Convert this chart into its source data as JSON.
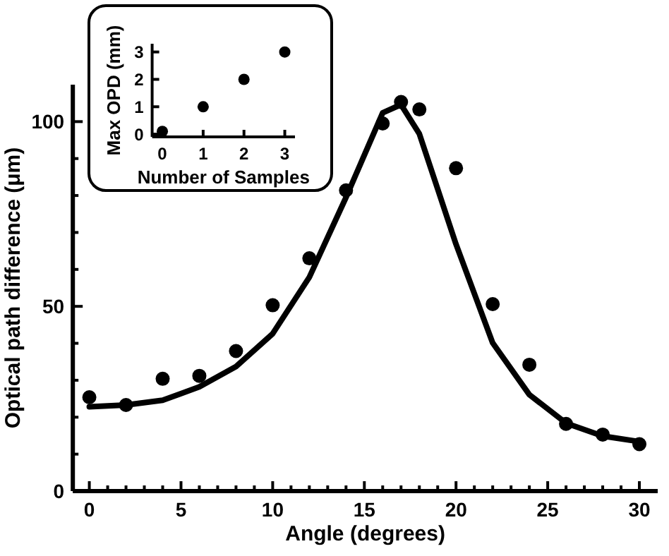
{
  "chart_data": [
    {
      "type": "scatter",
      "xlabel": "Angle (degrees)",
      "ylabel": "Optical path difference (μm)",
      "xlim": [
        -0.9,
        31
      ],
      "ylim": [
        0,
        110
      ],
      "xticks": [
        0,
        {
          "value": 1,
          "label": null
        },
        {
          "value": 2,
          "label": null
        },
        {
          "value": 3,
          "label": null
        },
        {
          "value": 4,
          "label": null
        },
        5,
        {
          "value": 6,
          "label": null
        },
        {
          "value": 7,
          "label": null
        },
        {
          "value": 8,
          "label": null
        },
        {
          "value": 9,
          "label": null
        },
        10,
        {
          "value": 11,
          "label": null
        },
        {
          "value": 12,
          "label": null
        },
        {
          "value": 13,
          "label": null
        },
        {
          "value": 14,
          "label": null
        },
        15,
        {
          "value": 16,
          "label": null
        },
        {
          "value": 17,
          "label": null
        },
        {
          "value": 18,
          "label": null
        },
        {
          "value": 19,
          "label": null
        },
        20,
        {
          "value": 21,
          "label": null
        },
        {
          "value": 22,
          "label": null
        },
        {
          "value": 23,
          "label": null
        },
        {
          "value": 24,
          "label": null
        },
        25,
        {
          "value": 26,
          "label": null
        },
        {
          "value": 27,
          "label": null
        },
        {
          "value": 28,
          "label": null
        },
        {
          "value": 29,
          "label": null
        },
        30
      ],
      "yticks": [
        0,
        {
          "value": 10,
          "label": null
        },
        {
          "value": 20,
          "label": null
        },
        {
          "value": 30,
          "label": null
        },
        {
          "value": 40,
          "label": null
        },
        50,
        {
          "value": 60,
          "label": null
        },
        {
          "value": 70,
          "label": null
        },
        {
          "value": 80,
          "label": null
        },
        {
          "value": 90,
          "label": null
        },
        100
      ],
      "grid": false,
      "series": [
        {
          "color": "#000000",
          "marker": "circle",
          "x": [
            0,
            2,
            4,
            6,
            8,
            10,
            12,
            14,
            16,
            17,
            18,
            20,
            22,
            24,
            26,
            28,
            30
          ],
          "values": [
            25.4,
            23.3,
            30.4,
            31.2,
            37.9,
            50.3,
            63,
            81.4,
            99.5,
            105.3,
            103.3,
            87.4,
            50.6,
            34.2,
            18.2,
            15.3,
            12.7
          ]
        },
        {
          "type": "line",
          "color": "#000000",
          "line_style": "solid",
          "x": [
            0,
            2,
            4,
            6,
            8,
            10,
            12,
            14,
            16,
            17,
            18,
            20,
            22,
            24,
            26,
            28,
            30
          ],
          "values": [
            22.8,
            23.3,
            24.6,
            28.2,
            33.7,
            42.6,
            57.9,
            79.5,
            102.4,
            104.6,
            96.7,
            66.8,
            40.1,
            26.1,
            18.4,
            14.9,
            13.4
          ]
        }
      ]
    },
    {
      "type": "scatter",
      "xlabel": "Number of Samples",
      "ylabel": "Max OPD (mm)",
      "xlim": [
        -0.25,
        3.25
      ],
      "ylim": [
        -0.1,
        3.3
      ],
      "xticks": [
        0,
        1,
        2,
        3
      ],
      "yticks": [
        0,
        1,
        2,
        3
      ],
      "grid": false,
      "series": [
        {
          "color": "#000000",
          "marker": "circle",
          "x": [
            0,
            1,
            2,
            3
          ],
          "values": [
            0.1,
            1,
            2,
            3
          ]
        }
      ]
    }
  ]
}
